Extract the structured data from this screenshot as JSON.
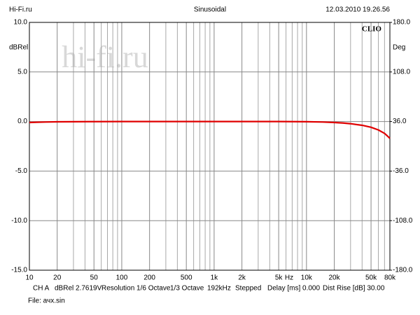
{
  "chart_data": {
    "type": "line",
    "header_left": "Hi-Fi.ru",
    "title": "Sinusoidal",
    "header_right": "12.03.2010 19.26.56",
    "ylabel": "dBRel",
    "y2label": "Deg",
    "xlabel": "Hz",
    "brand": "CLIO",
    "watermark": "hi-fi.ru",
    "footer": [
      "CH A",
      "dBRel 2.7619V",
      "Resolution 1/6 Octave",
      "1/3 Octave",
      "192kHz",
      "Stepped",
      "Delay [ms] 0.000",
      "Dist Rise [dB] 30.00"
    ],
    "file": "File: ачх.sin",
    "xscale": "log",
    "grid": true,
    "xlim": [
      10,
      80000
    ],
    "xticks": [
      10,
      20,
      50,
      100,
      200,
      500,
      {
        "value": 1000,
        "label": "1k"
      },
      {
        "value": 2000,
        "label": "2k"
      },
      {
        "value": 5000,
        "label": "5k"
      },
      {
        "value": 10000,
        "label": "10k"
      },
      {
        "value": 20000,
        "label": "20k"
      },
      {
        "value": 50000,
        "label": "50k"
      },
      {
        "value": 80000,
        "label": "80k"
      }
    ],
    "ylim": [
      -15,
      10
    ],
    "yticks": [
      {
        "value": 10,
        "label": "10.0"
      },
      {
        "value": 5,
        "label": "5.0"
      },
      {
        "value": 0,
        "label": "0.0"
      },
      {
        "value": -5,
        "label": "-5.0"
      },
      {
        "value": -10,
        "label": "-10.0"
      },
      {
        "value": -15,
        "label": "-15.0"
      }
    ],
    "y2lim": [
      -180,
      180
    ],
    "y2ticks": [
      {
        "value": 180,
        "label": "180.0"
      },
      {
        "value": 108,
        "label": "108.0"
      },
      {
        "value": 36,
        "label": "36.0"
      },
      {
        "value": -36,
        "label": "-36.0"
      },
      {
        "value": -108,
        "label": "-108.0"
      },
      {
        "value": -180,
        "label": "-180.0"
      }
    ],
    "x": [
      10,
      12,
      15,
      20,
      30,
      50,
      100,
      200,
      500,
      1000,
      2000,
      5000,
      10000,
      15000,
      20000,
      25000,
      30000,
      40000,
      50000,
      60000,
      70000,
      75000,
      80000
    ],
    "series": [
      {
        "name": "CH A",
        "color": "#e00000",
        "values": [
          -0.1,
          -0.07,
          -0.05,
          -0.03,
          -0.02,
          -0.01,
          0,
          0,
          0,
          0,
          0,
          0,
          -0.02,
          -0.05,
          -0.1,
          -0.15,
          -0.22,
          -0.38,
          -0.58,
          -0.85,
          -1.2,
          -1.45,
          -1.7
        ]
      }
    ]
  }
}
